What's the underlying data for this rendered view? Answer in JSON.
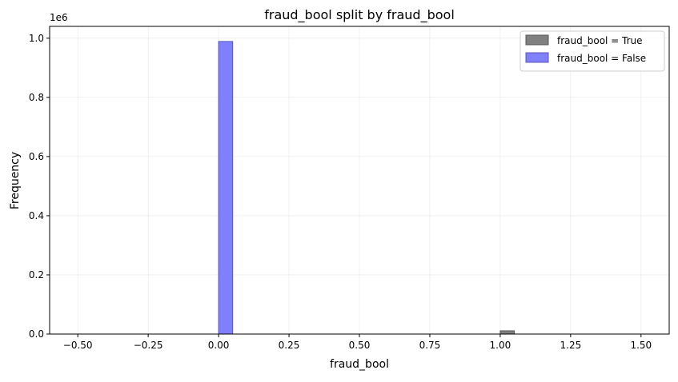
{
  "chart_data": {
    "type": "bar",
    "title": "fraud_bool split by fraud_bool",
    "xlabel": "fraud_bool",
    "ylabel": "Frequency",
    "y_offset_label": "1e6",
    "xlim": [
      -0.6,
      1.6
    ],
    "ylim": [
      0,
      1.04
    ],
    "x_ticks": [
      -0.5,
      -0.25,
      0.0,
      0.25,
      0.5,
      0.75,
      1.0,
      1.25,
      1.5
    ],
    "x_tick_labels": [
      "−0.50",
      "−0.25",
      "0.00",
      "0.25",
      "0.50",
      "0.75",
      "1.00",
      "1.25",
      "1.50"
    ],
    "y_ticks": [
      0.0,
      0.2,
      0.4,
      0.6,
      0.8,
      1.0
    ],
    "y_tick_labels": [
      "0.0",
      "0.2",
      "0.4",
      "0.6",
      "0.8",
      "1.0"
    ],
    "grid": true,
    "legend_position": "top-right",
    "series": [
      {
        "name": "fraud_bool = True",
        "color": "#808080",
        "edge_color": "#555555",
        "bins": [
          {
            "x0": 1.0,
            "x1": 1.05,
            "value": 0.011
          }
        ]
      },
      {
        "name": "fraud_bool = False",
        "color": "#8080ff",
        "edge_color": "#5555bb",
        "bins": [
          {
            "x0": 0.0,
            "x1": 0.05,
            "value": 0.989
          }
        ]
      }
    ]
  }
}
